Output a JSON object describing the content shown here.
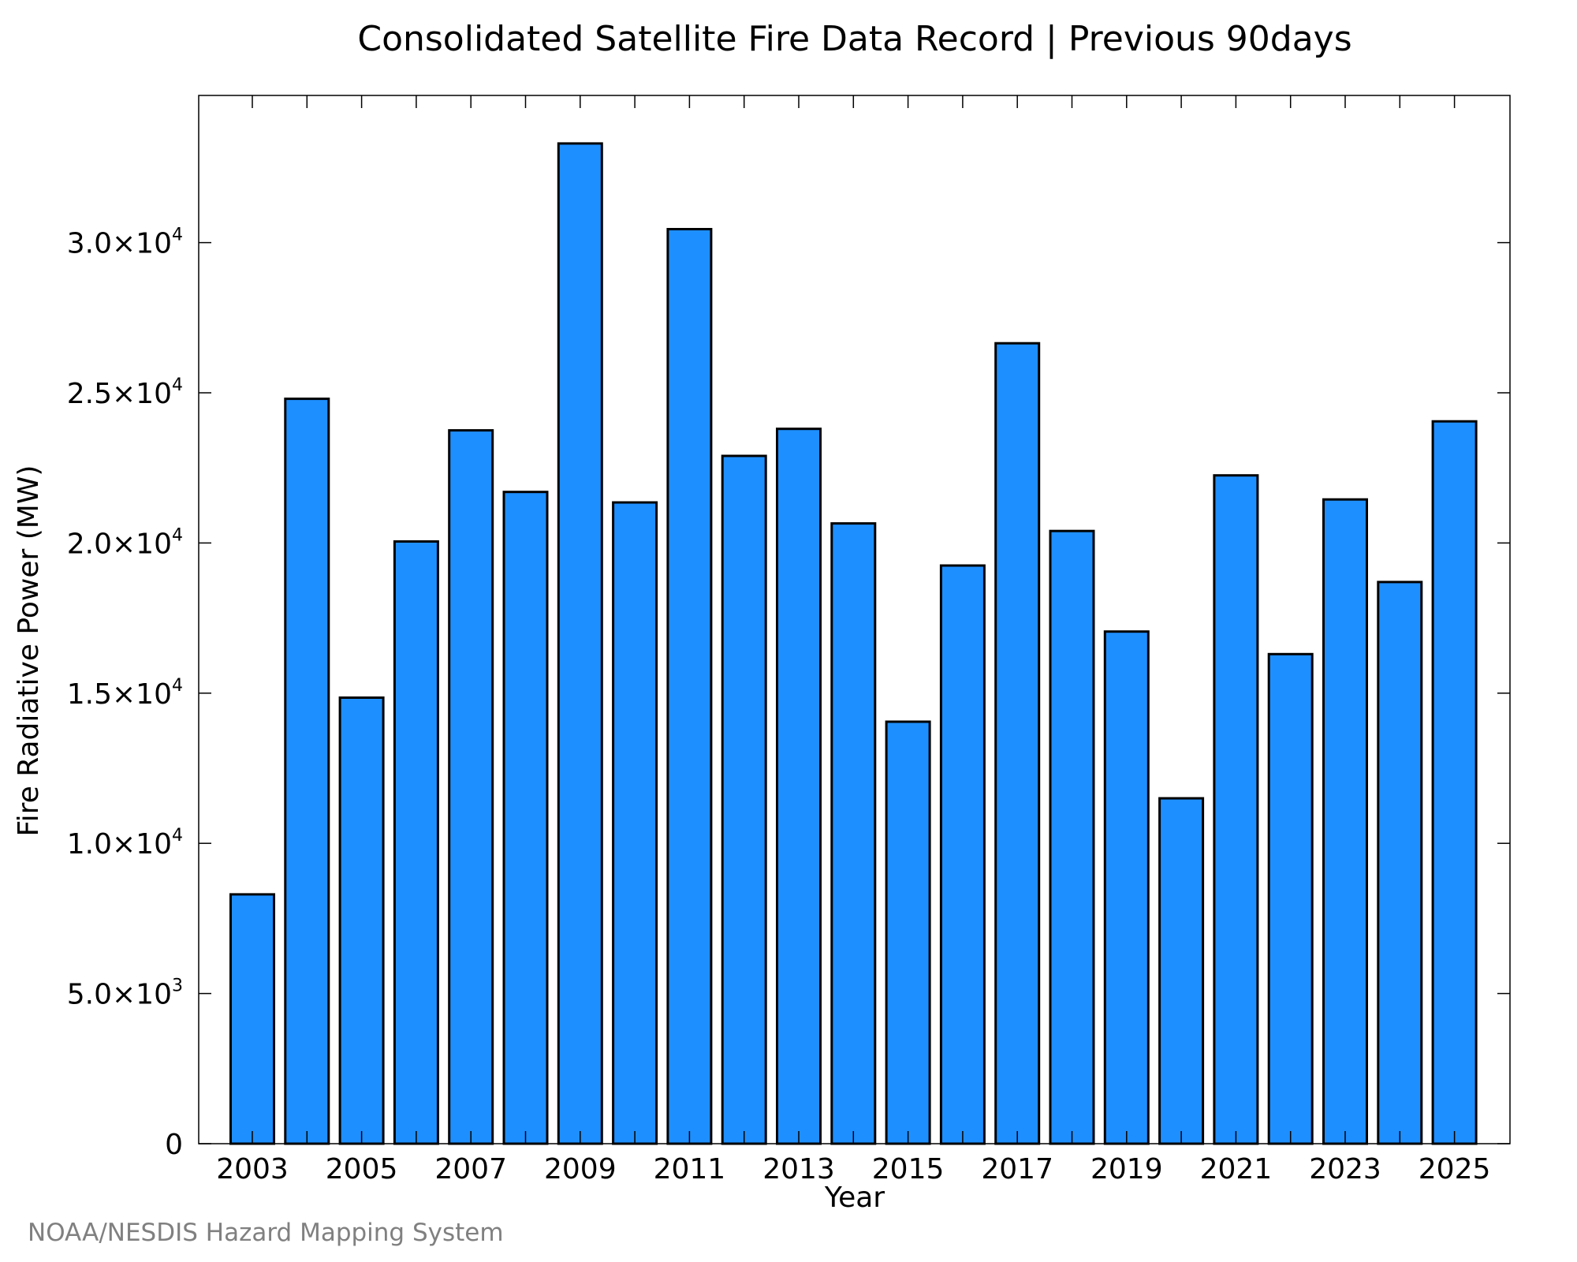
{
  "chart_data": {
    "type": "bar",
    "title": "Consolidated Satellite Fire Data Record | Previous 90days",
    "xlabel": "Year",
    "ylabel": "Fire Radiative Power (MW)",
    "categories": [
      "2003",
      "2004",
      "2005",
      "2006",
      "2007",
      "2008",
      "2009",
      "2010",
      "2011",
      "2012",
      "2013",
      "2014",
      "2015",
      "2016",
      "2017",
      "2018",
      "2019",
      "2020",
      "2021",
      "2022",
      "2023",
      "2024",
      "2025"
    ],
    "values": [
      8300,
      24800,
      14850,
      20050,
      23750,
      21700,
      33300,
      21350,
      30450,
      22900,
      23800,
      20650,
      14050,
      19250,
      26650,
      20400,
      17050,
      11500,
      22250,
      16300,
      21450,
      18700,
      24050
    ],
    "ylim": [
      0,
      34900
    ],
    "yticks": [
      {
        "value": 0,
        "mantissa": "0",
        "exp": ""
      },
      {
        "value": 5000,
        "mantissa": "5.0×10",
        "exp": "3"
      },
      {
        "value": 10000,
        "mantissa": "1.0×10",
        "exp": "4"
      },
      {
        "value": 15000,
        "mantissa": "1.5×10",
        "exp": "4"
      },
      {
        "value": 20000,
        "mantissa": "2.0×10",
        "exp": "4"
      },
      {
        "value": 25000,
        "mantissa": "2.5×10",
        "exp": "4"
      },
      {
        "value": 30000,
        "mantissa": "3.0×10",
        "exp": "4"
      }
    ],
    "xtick_labels": [
      "2003",
      "2005",
      "2007",
      "2009",
      "2011",
      "2013",
      "2015",
      "2017",
      "2019",
      "2021",
      "2023",
      "2025"
    ],
    "grid": false,
    "legend": "none",
    "bar_color": "#1e8fff",
    "bar_edge_color": "#000000"
  },
  "credit": {
    "text": "NOAA/NESDIS Hazard Mapping System",
    "color": "#808080"
  }
}
